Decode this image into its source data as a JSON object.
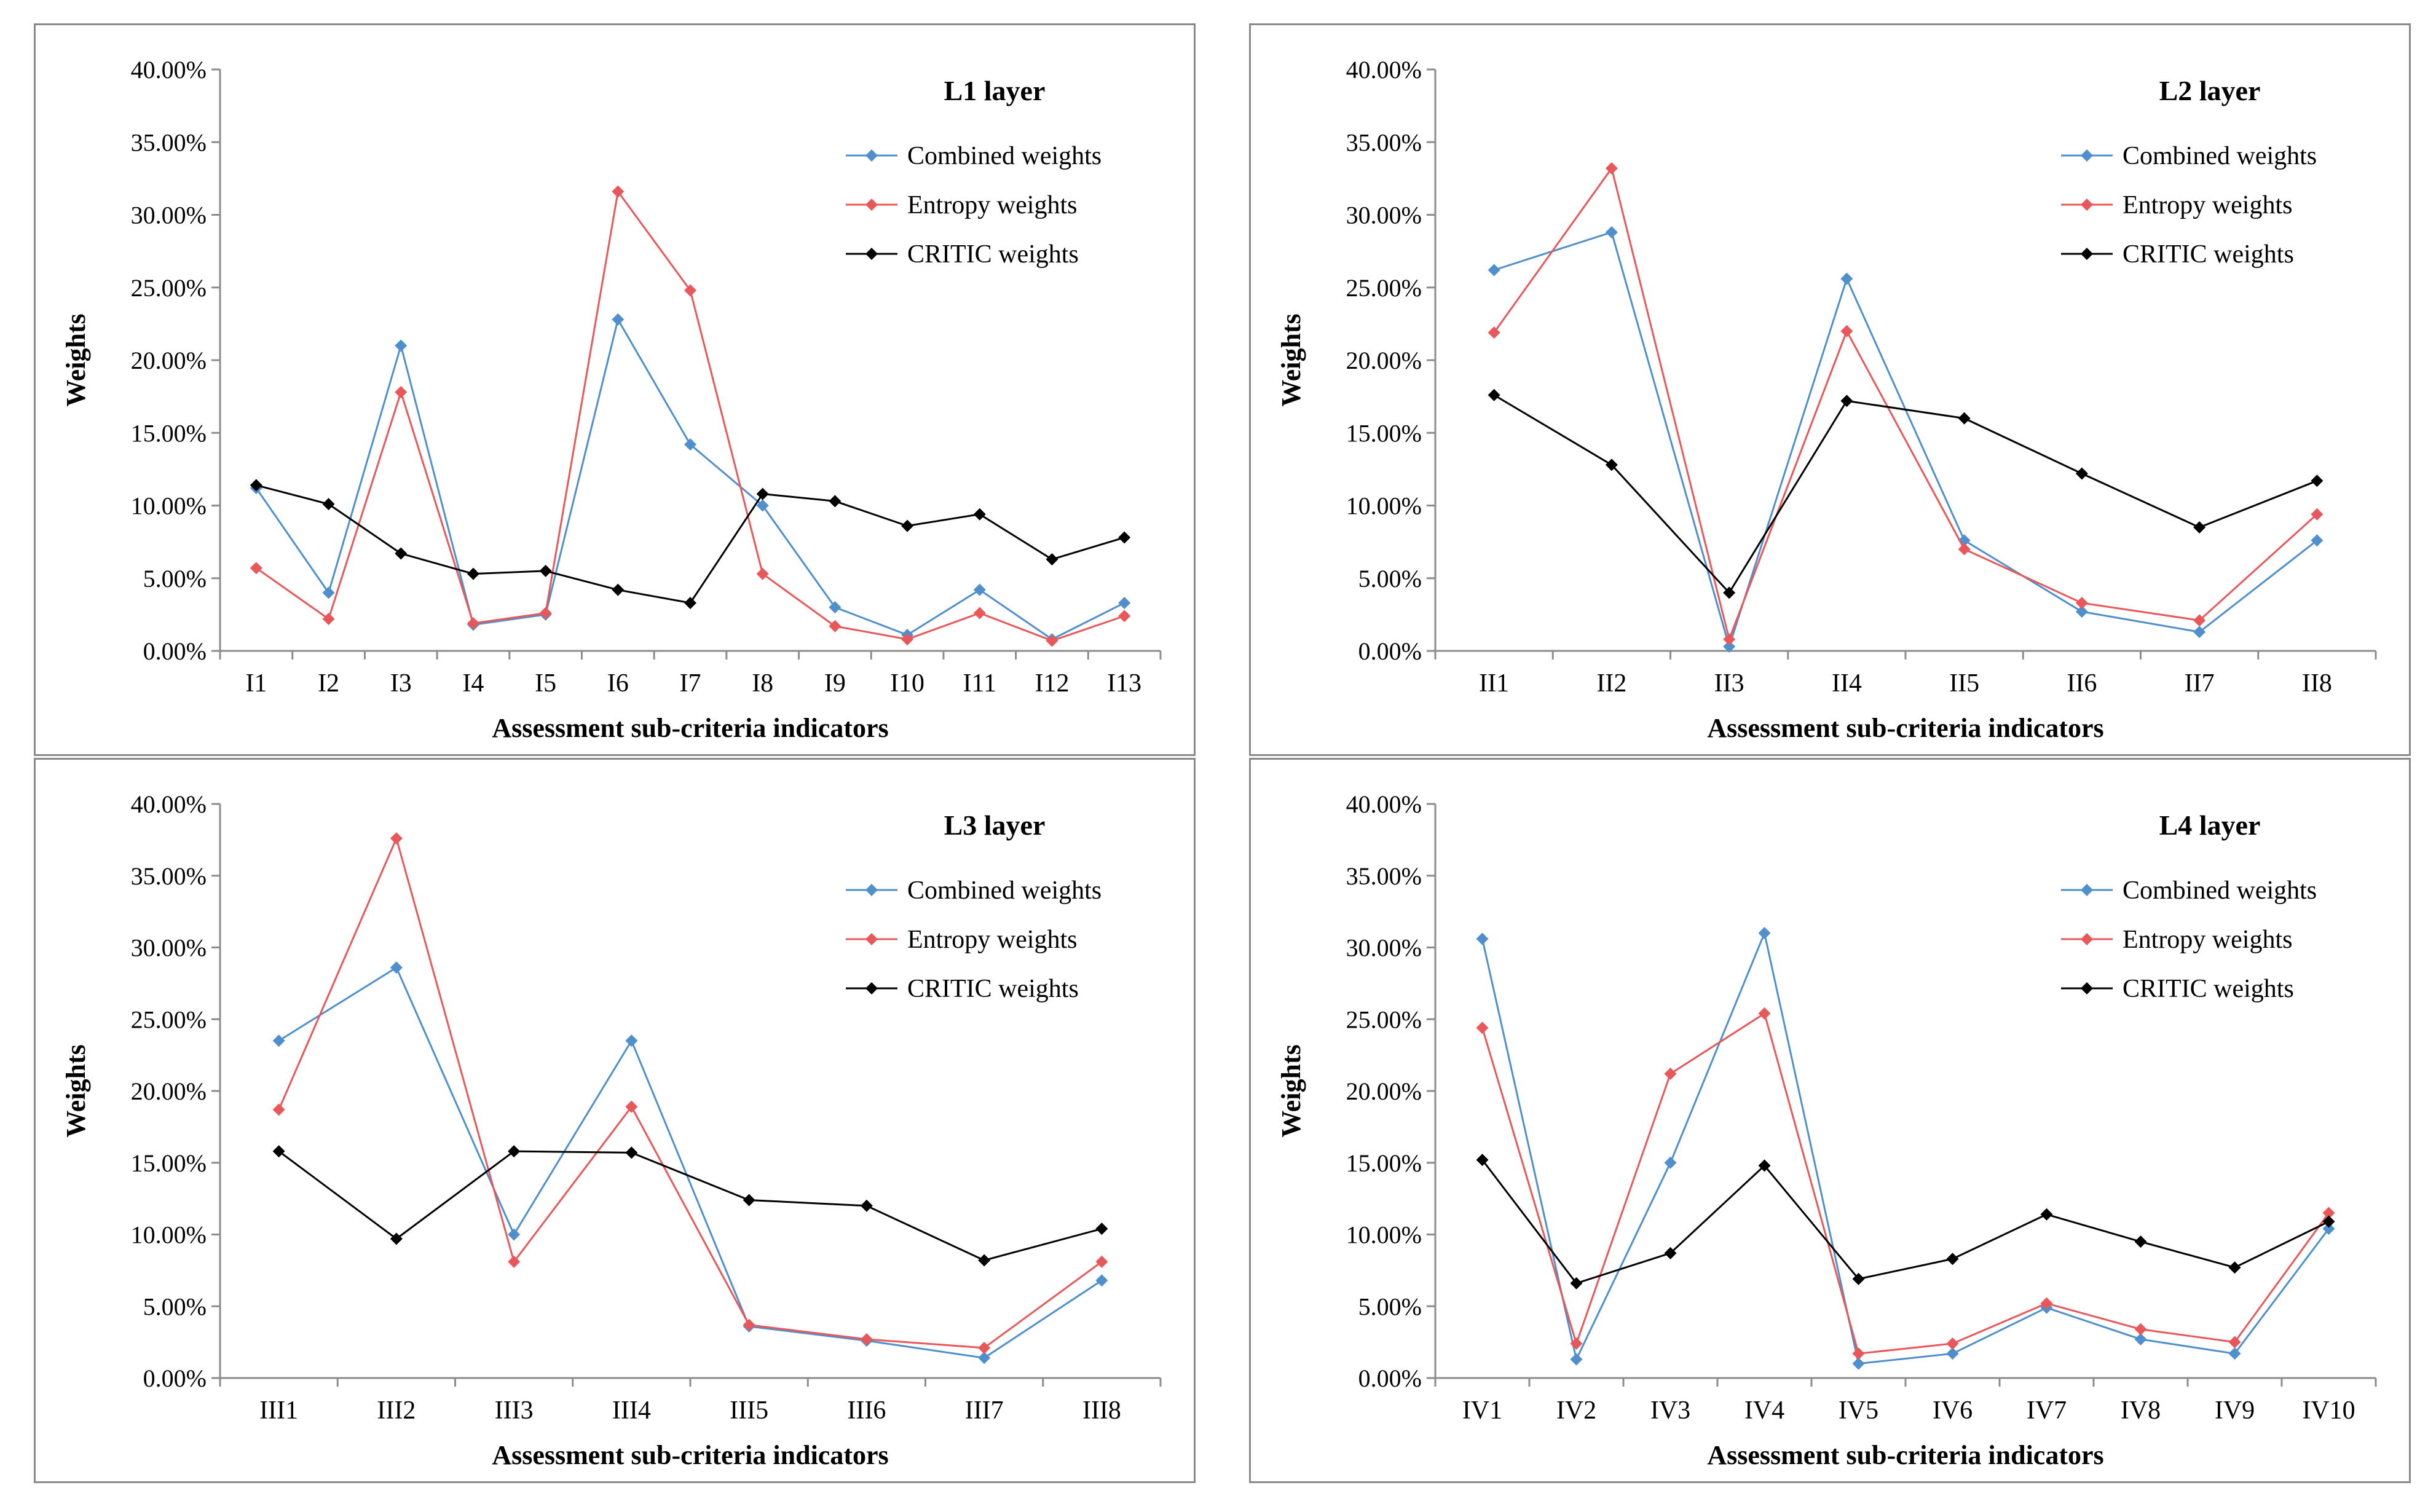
{
  "colors": {
    "combined": "#4f90cc",
    "entropy": "#e8585a",
    "critic": "#000000",
    "axis": "#8c8c8c"
  },
  "chart_data": [
    {
      "type": "line",
      "title": "L1 layer",
      "xlabel": "Assessment sub-criteria indicators",
      "ylabel": "Weights",
      "ylim": [
        0,
        40
      ],
      "yticks": [
        "0.00%",
        "5.00%",
        "10.00%",
        "15.00%",
        "20.00%",
        "25.00%",
        "30.00%",
        "35.00%",
        "40.00%"
      ],
      "categories": [
        "I1",
        "I2",
        "I3",
        "I4",
        "I5",
        "I6",
        "I7",
        "I8",
        "I9",
        "I10",
        "I11",
        "I12",
        "I13"
      ],
      "series": [
        {
          "name": "Combined weights",
          "color_key": "combined",
          "values": [
            11.2,
            4.0,
            21.0,
            1.8,
            2.5,
            22.8,
            14.2,
            10.0,
            3.0,
            1.1,
            4.2,
            0.8,
            3.3
          ]
        },
        {
          "name": "Entropy weights",
          "color_key": "entropy",
          "values": [
            5.7,
            2.2,
            17.8,
            1.9,
            2.6,
            31.6,
            24.8,
            5.3,
            1.7,
            0.8,
            2.6,
            0.7,
            2.4
          ]
        },
        {
          "name": "CRITIC weights",
          "color_key": "critic",
          "values": [
            11.4,
            10.1,
            6.7,
            5.3,
            5.5,
            4.2,
            3.3,
            10.8,
            10.3,
            8.6,
            9.4,
            6.3,
            7.8
          ]
        }
      ]
    },
    {
      "type": "line",
      "title": "L2 layer",
      "xlabel": "Assessment sub-criteria indicators",
      "ylabel": "Weights",
      "ylim": [
        0,
        40
      ],
      "yticks": [
        "0.00%",
        "5.00%",
        "10.00%",
        "15.00%",
        "20.00%",
        "25.00%",
        "30.00%",
        "35.00%",
        "40.00%"
      ],
      "categories": [
        "II1",
        "II2",
        "II3",
        "II4",
        "II5",
        "II6",
        "II7",
        "II8"
      ],
      "series": [
        {
          "name": "Combined weights",
          "color_key": "combined",
          "values": [
            26.2,
            28.8,
            0.3,
            25.6,
            7.6,
            2.7,
            1.3,
            7.6
          ]
        },
        {
          "name": "Entropy weights",
          "color_key": "entropy",
          "values": [
            21.9,
            33.2,
            0.8,
            22.0,
            7.0,
            3.3,
            2.1,
            9.4
          ]
        },
        {
          "name": "CRITIC weights",
          "color_key": "critic",
          "values": [
            17.6,
            12.8,
            4.0,
            17.2,
            16.0,
            12.2,
            8.5,
            11.7
          ]
        }
      ]
    },
    {
      "type": "line",
      "title": "L3 layer",
      "xlabel": "Assessment sub-criteria indicators",
      "ylabel": "Weights",
      "ylim": [
        0,
        40
      ],
      "yticks": [
        "0.00%",
        "5.00%",
        "10.00%",
        "15.00%",
        "20.00%",
        "25.00%",
        "30.00%",
        "35.00%",
        "40.00%"
      ],
      "categories": [
        "III1",
        "III2",
        "III3",
        "III4",
        "III5",
        "III6",
        "III7",
        "III8"
      ],
      "series": [
        {
          "name": "Combined weights",
          "color_key": "combined",
          "values": [
            23.5,
            28.6,
            10.0,
            23.5,
            3.6,
            2.6,
            1.4,
            6.8
          ]
        },
        {
          "name": "Entropy weights",
          "color_key": "entropy",
          "values": [
            18.7,
            37.6,
            8.1,
            18.9,
            3.7,
            2.7,
            2.1,
            8.1
          ]
        },
        {
          "name": "CRITIC weights",
          "color_key": "critic",
          "values": [
            15.8,
            9.7,
            15.8,
            15.7,
            12.4,
            12.0,
            8.2,
            10.4
          ]
        }
      ]
    },
    {
      "type": "line",
      "title": "L4 layer",
      "xlabel": "Assessment sub-criteria indicators",
      "ylabel": "Weights",
      "ylim": [
        0,
        40
      ],
      "yticks": [
        "0.00%",
        "5.00%",
        "10.00%",
        "15.00%",
        "20.00%",
        "25.00%",
        "30.00%",
        "35.00%",
        "40.00%"
      ],
      "categories": [
        "IV1",
        "IV2",
        "IV3",
        "IV4",
        "IV5",
        "IV6",
        "IV7",
        "IV8",
        "IV9",
        "IV10"
      ],
      "series": [
        {
          "name": "Combined weights",
          "color_key": "combined",
          "values": [
            30.6,
            1.3,
            15.0,
            31.0,
            1.0,
            1.7,
            4.9,
            2.7,
            1.7,
            10.4
          ]
        },
        {
          "name": "Entropy weights",
          "color_key": "entropy",
          "values": [
            24.4,
            2.4,
            21.2,
            25.4,
            1.7,
            2.4,
            5.2,
            3.4,
            2.5,
            11.5
          ]
        },
        {
          "name": "CRITIC weights",
          "color_key": "critic",
          "values": [
            15.2,
            6.6,
            8.7,
            14.8,
            6.9,
            8.3,
            11.4,
            9.5,
            7.7,
            10.9
          ]
        }
      ]
    }
  ]
}
